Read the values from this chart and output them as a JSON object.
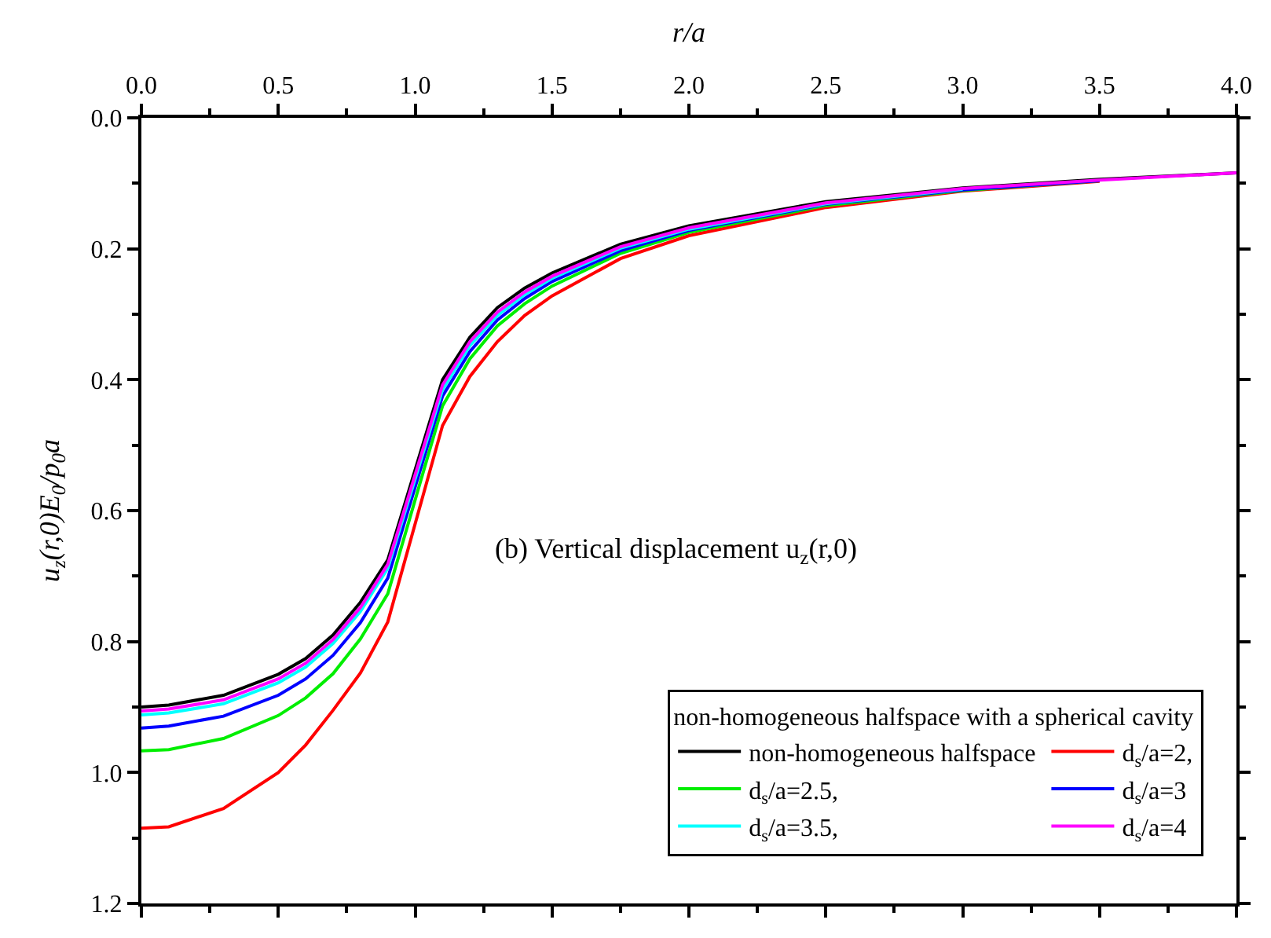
{
  "chart_data": {
    "type": "line",
    "xlabel": "r/a",
    "ylabel": "u$_{z}$(r,0)E$_{0}$/p$_{0}$a",
    "legend_title": "non-homogeneous halfspace with a spherical cavity",
    "annotations": [
      "(b) Vertical displacement u$_{z}$(r,0)"
    ],
    "x": [
      0,
      0.1,
      0.3,
      0.5,
      0.6,
      0.7,
      0.8,
      0.9,
      1.1,
      1.2,
      1.3,
      1.4,
      1.5,
      1.75,
      2,
      2.5,
      3,
      3.5,
      4
    ],
    "series": [
      {
        "name": "non-homogeneous halfspace",
        "color": "#000000",
        "values": [
          0.9,
          0.897,
          0.882,
          0.85,
          0.826,
          0.79,
          0.74,
          0.675,
          0.4,
          0.335,
          0.29,
          0.26,
          0.237,
          0.193,
          0.165,
          0.128,
          0.107,
          0.094,
          0.084
        ]
      },
      {
        "name": "d$_{s}$/a=2,",
        "color": "#ff0000",
        "values": [
          1.085,
          1.083,
          1.055,
          1.0,
          0.958,
          0.905,
          0.848,
          0.77,
          0.47,
          0.395,
          0.342,
          0.302,
          0.272,
          0.215,
          0.18,
          0.137,
          0.112,
          0.097,
          null
        ]
      },
      {
        "name": "d$_{s}$/a=2.5,",
        "color": "#00ee00",
        "values": [
          0.967,
          0.965,
          0.948,
          0.913,
          0.886,
          0.849,
          0.796,
          0.727,
          0.44,
          0.368,
          0.318,
          0.284,
          0.257,
          0.207,
          0.175,
          0.134,
          0.111,
          0.096,
          null
        ]
      },
      {
        "name": "d$_{s}$/a=3",
        "color": "#0000ff",
        "values": [
          0.932,
          0.929,
          0.914,
          0.882,
          0.857,
          0.821,
          0.771,
          0.703,
          0.425,
          0.357,
          0.309,
          0.276,
          0.25,
          0.203,
          0.172,
          0.132,
          0.11,
          0.096,
          null
        ]
      },
      {
        "name": "d$_{s}$/a=3.5,",
        "color": "#00ffff",
        "values": [
          0.912,
          0.909,
          0.895,
          0.863,
          0.839,
          0.803,
          0.754,
          0.688,
          0.415,
          0.348,
          0.302,
          0.27,
          0.245,
          0.199,
          0.17,
          0.131,
          0.109,
          null,
          null
        ]
      },
      {
        "name": "d$_{s}$/a=4",
        "color": "#ff00ff",
        "values": [
          0.906,
          0.903,
          0.889,
          0.857,
          0.833,
          0.797,
          0.748,
          0.682,
          0.408,
          0.342,
          0.297,
          0.266,
          0.242,
          0.197,
          0.168,
          0.13,
          0.108,
          0.095,
          0.084
        ]
      }
    ],
    "xlim": [
      0,
      4
    ],
    "xticks": [
      {
        "value": 0,
        "label": "0.0"
      },
      {
        "value": 0.5,
        "label": "0.5"
      },
      {
        "value": 1,
        "label": "1.0"
      },
      {
        "value": 1.5,
        "label": "1.5"
      },
      {
        "value": 2,
        "label": "2.0"
      },
      {
        "value": 2.5,
        "label": "2.5"
      },
      {
        "value": 3,
        "label": "3.0"
      },
      {
        "value": 3.5,
        "label": "3.5"
      },
      {
        "value": 4,
        "label": "4.0"
      }
    ],
    "ylim": [
      1.2,
      0
    ],
    "yticks": [
      {
        "value": 0,
        "label": "0.0"
      },
      {
        "value": 0.2,
        "label": "0.2"
      },
      {
        "value": 0.4,
        "label": "0.4"
      },
      {
        "value": 0.6,
        "label": "0.6"
      },
      {
        "value": 0.8,
        "label": "0.8"
      },
      {
        "value": 1.0,
        "label": "1.0"
      },
      {
        "value": 1.2,
        "label": "1.2"
      }
    ],
    "legend": "bottom right",
    "marker": "none",
    "line_style": "solid"
  }
}
